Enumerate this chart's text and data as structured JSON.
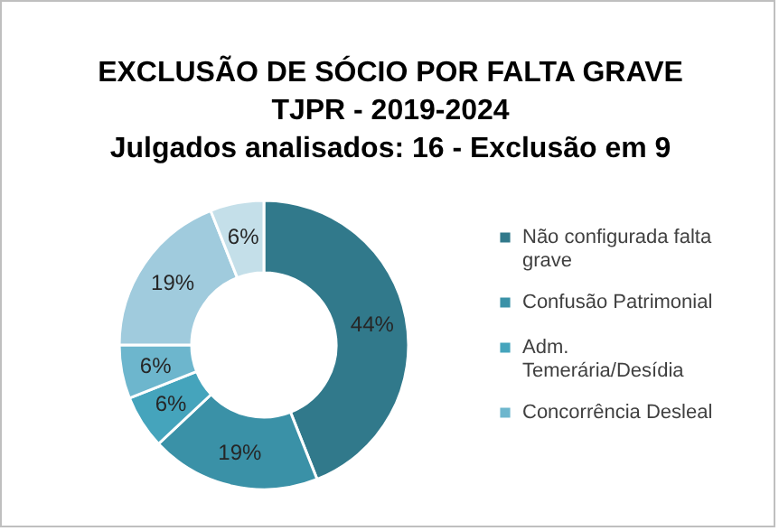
{
  "chart_data": {
    "type": "donut",
    "title": "EXCLUSÃO DE SÓCIO POR FALTA GRAVE",
    "subtitle": "TJPR - 2019-2024",
    "annotations": [
      "Julgados analisados: 16 - Exclusão em 9"
    ],
    "categories": [
      "Não configurada falta grave",
      "Confusão Patrimonial",
      "Adm. Temerária/Desídia",
      "Concorrência Desleal",
      null,
      null
    ],
    "values": [
      44,
      19,
      6,
      6,
      19,
      6
    ],
    "value_labels": [
      "44%",
      "19%",
      "6%",
      "6%",
      "19%",
      "6%"
    ],
    "colors": [
      "#31798b",
      "#3a91a7",
      "#45a4bc",
      "#6db6cd",
      "#a0cbdd",
      "#c4dfe9"
    ],
    "legend": "right"
  }
}
